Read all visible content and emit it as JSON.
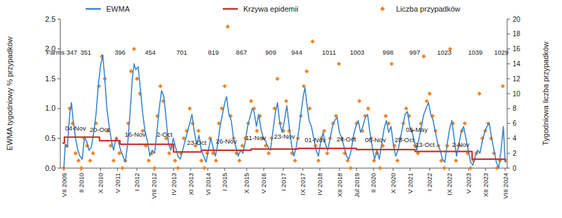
{
  "chart_data": {
    "type": "line",
    "y_label": "EWMA tygodniowy % przypadków",
    "y2_label": "Tygodniowa liczba przypadków",
    "legend": "top",
    "grid": false,
    "xlim": [
      2009.38,
      2024.65
    ],
    "xticks": [
      {
        "value": 2009.5,
        "label": "VII 2009"
      },
      {
        "value": 2010.083,
        "label": "II 2010"
      },
      {
        "value": 2010.75,
        "label": "X 2010"
      },
      {
        "value": 2011.333,
        "label": "V 2011"
      },
      {
        "value": 2012.0,
        "label": "I 2012"
      },
      {
        "value": 2012.583,
        "label": "VIII 2012"
      },
      {
        "value": 2013.25,
        "label": "IV 2013"
      },
      {
        "value": 2013.833,
        "label": "XI 2013"
      },
      {
        "value": 2014.417,
        "label": "VI 2014"
      },
      {
        "value": 2015.0,
        "label": "I 2015"
      },
      {
        "value": 2015.75,
        "label": "X 2015"
      },
      {
        "value": 2016.333,
        "label": "V 2016"
      },
      {
        "value": 2017.0,
        "label": "I 2017"
      },
      {
        "value": 2017.667,
        "label": "IX 2017"
      },
      {
        "value": 2018.25,
        "label": "IV 2018"
      },
      {
        "value": 2018.917,
        "label": "XII 2018"
      },
      {
        "value": 2019.5,
        "label": "Jul 2019"
      },
      {
        "value": 2020.083,
        "label": "II 2020"
      },
      {
        "value": 2020.75,
        "label": "X 2020"
      },
      {
        "value": 2021.333,
        "label": "V 2021"
      },
      {
        "value": 2022.0,
        "label": "I 2022"
      },
      {
        "value": 2022.667,
        "label": "IX 2022"
      },
      {
        "value": 2023.333,
        "label": "V 2023"
      },
      {
        "value": 2023.917,
        "label": "XII 2023"
      },
      {
        "value": 2024.583,
        "label": "VIII 2024"
      }
    ],
    "ylim": [
      0,
      2.5
    ],
    "yticks": [
      {
        "value": 0,
        "label": "0.0"
      },
      0.5,
      {
        "value": 1,
        "label": "1.0"
      },
      1.5,
      {
        "value": 2,
        "label": "2.0"
      },
      2.5
    ],
    "y2lim": [
      0,
      20
    ],
    "y2ticks": [
      0,
      2,
      4,
      6,
      8,
      10,
      12,
      14,
      16,
      18,
      20
    ],
    "series": [
      {
        "name": "EWMA",
        "type": "line",
        "color": "#3a86d0",
        "x": [
          2009.5,
          2009.55,
          2009.62,
          2009.7,
          2009.76,
          2009.82,
          2009.9,
          2009.98,
          2010.05,
          2010.13,
          2010.2,
          2010.28,
          2010.36,
          2010.44,
          2010.52,
          2010.6,
          2010.68,
          2010.75,
          2010.83,
          2010.9,
          2010.97,
          2011.05,
          2011.13,
          2011.2,
          2011.28,
          2011.36,
          2011.44,
          2011.52,
          2011.6,
          2011.68,
          2011.76,
          2011.84,
          2011.9,
          2011.96,
          2012.04,
          2012.12,
          2012.2,
          2012.28,
          2012.36,
          2012.44,
          2012.52,
          2012.6,
          2012.68,
          2012.76,
          2012.84,
          2012.92,
          2013.0,
          2013.08,
          2013.16,
          2013.24,
          2013.32,
          2013.4,
          2013.48,
          2013.56,
          2013.64,
          2013.72,
          2013.8,
          2013.88,
          2013.96,
          2014.04,
          2014.12,
          2014.2,
          2014.28,
          2014.36,
          2014.44,
          2014.52,
          2014.6,
          2014.68,
          2014.76,
          2014.84,
          2014.92,
          2015.0,
          2015.06,
          2015.14,
          2015.22,
          2015.3,
          2015.38,
          2015.46,
          2015.54,
          2015.62,
          2015.7,
          2015.78,
          2015.86,
          2015.94,
          2016.0,
          2016.08,
          2016.16,
          2016.24,
          2016.32,
          2016.4,
          2016.48,
          2016.56,
          2016.64,
          2016.72,
          2016.8,
          2016.88,
          2016.96,
          2017.04,
          2017.12,
          2017.2,
          2017.28,
          2017.36,
          2017.44,
          2017.52,
          2017.6,
          2017.68,
          2017.74,
          2017.8,
          2017.88,
          2017.96,
          2018.04,
          2018.12,
          2018.2,
          2018.28,
          2018.36,
          2018.44,
          2018.52,
          2018.6,
          2018.68,
          2018.76,
          2018.84,
          2018.92,
          2019.0,
          2019.08,
          2019.16,
          2019.24,
          2019.32,
          2019.4,
          2019.48,
          2019.56,
          2019.64,
          2019.72,
          2019.8,
          2019.88,
          2019.96,
          2020.04,
          2020.12,
          2020.2,
          2020.28,
          2020.36,
          2020.44,
          2020.52,
          2020.6,
          2020.68,
          2020.76,
          2020.84,
          2020.92,
          2021.0,
          2021.08,
          2021.16,
          2021.24,
          2021.32,
          2021.4,
          2021.48,
          2021.56,
          2021.64,
          2021.72,
          2021.8,
          2021.88,
          2021.96,
          2022.04,
          2022.12,
          2022.2,
          2022.28,
          2022.36,
          2022.44,
          2022.52,
          2022.6,
          2022.68,
          2022.76,
          2022.84,
          2022.92,
          2023.0,
          2023.08,
          2023.16,
          2023.24,
          2023.32,
          2023.4,
          2023.48,
          2023.56,
          2023.64,
          2023.72,
          2023.8,
          2023.88,
          2023.96,
          2024.04,
          2024.12,
          2024.2,
          2024.28,
          2024.36,
          2024.44,
          2024.52,
          2024.58
        ],
        "values": [
          0.0,
          0.4,
          0.35,
          0.9,
          1.1,
          0.8,
          0.5,
          0.3,
          0.2,
          0.15,
          0.5,
          0.45,
          0.3,
          0.35,
          0.6,
          0.9,
          1.4,
          1.7,
          1.9,
          1.5,
          1.0,
          0.7,
          0.45,
          0.3,
          0.5,
          0.45,
          0.3,
          0.2,
          0.1,
          0.4,
          0.9,
          1.5,
          1.75,
          1.65,
          1.7,
          1.3,
          0.9,
          0.6,
          0.45,
          0.2,
          0.3,
          0.25,
          0.6,
          1.0,
          1.3,
          1.2,
          0.8,
          0.4,
          0.3,
          0.5,
          0.35,
          0.2,
          0.15,
          0.3,
          0.45,
          0.6,
          0.75,
          0.9,
          0.6,
          0.4,
          0.55,
          0.3,
          0.2,
          0.1,
          0.3,
          0.5,
          0.35,
          0.2,
          0.4,
          0.7,
          0.9,
          1.1,
          1.2,
          0.9,
          0.8,
          0.5,
          0.35,
          0.2,
          0.3,
          0.25,
          0.45,
          0.7,
          0.85,
          1.0,
          0.95,
          0.7,
          0.9,
          0.65,
          0.5,
          0.45,
          0.35,
          0.3,
          0.6,
          0.9,
          1.1,
          0.75,
          0.6,
          0.8,
          1.05,
          0.7,
          0.4,
          0.2,
          0.35,
          0.6,
          0.9,
          1.2,
          1.35,
          1.1,
          0.8,
          0.7,
          0.5,
          0.3,
          0.2,
          0.45,
          0.6,
          0.4,
          0.3,
          0.5,
          0.7,
          0.8,
          0.85,
          0.6,
          0.5,
          0.35,
          0.2,
          0.15,
          0.3,
          0.55,
          0.7,
          0.8,
          0.6,
          0.7,
          0.85,
          0.9,
          0.6,
          0.35,
          0.15,
          0.3,
          0.15,
          0.4,
          0.65,
          0.8,
          0.6,
          0.7,
          0.4,
          0.2,
          0.3,
          0.5,
          0.7,
          0.9,
          0.95,
          0.7,
          0.6,
          0.45,
          0.3,
          0.5,
          0.7,
          0.9,
          1.0,
          1.1,
          0.9,
          0.8,
          0.6,
          0.4,
          0.3,
          0.15,
          0.1,
          0.4,
          0.65,
          0.8,
          0.5,
          0.2,
          0.4,
          0.6,
          0.7,
          0.5,
          0.3,
          0.1,
          0.05,
          0.2,
          0.3,
          0.25,
          0.45,
          0.6,
          0.7,
          0.75,
          0.5,
          0.3,
          0.1,
          0.0,
          0.3,
          0.7,
          0.1
        ]
      },
      {
        "name": "Krzywa epidemii",
        "type": "line",
        "line_style": "step",
        "color": "#c8342c",
        "x": [
          2009.45,
          2009.52,
          2010.72,
          2011.42,
          2013.25,
          2014.2,
          2015.9,
          2017.5,
          2019.5,
          2021.5,
          2023.45,
          2024.6
        ],
        "values": [
          0.42,
          0.52,
          0.46,
          0.4,
          0.27,
          0.3,
          0.32,
          0.33,
          0.31,
          0.28,
          0.15,
          0.15
        ]
      },
      {
        "name": "Liczba przypadków",
        "type": "scatter",
        "marker": "diamond",
        "color": "#f0862a",
        "axis": "y2",
        "x": [
          2009.5,
          2009.6,
          2009.7,
          2009.8,
          2009.9,
          2010.0,
          2010.1,
          2010.2,
          2010.3,
          2010.4,
          2010.5,
          2010.6,
          2010.7,
          2010.8,
          2010.9,
          2011.0,
          2011.1,
          2011.2,
          2011.3,
          2011.4,
          2011.5,
          2011.6,
          2011.7,
          2011.8,
          2011.9,
          2012.0,
          2012.1,
          2012.2,
          2012.3,
          2012.4,
          2012.5,
          2012.6,
          2012.7,
          2012.8,
          2012.9,
          2013.0,
          2013.1,
          2013.2,
          2013.3,
          2013.4,
          2013.5,
          2013.6,
          2013.7,
          2013.8,
          2013.9,
          2014.0,
          2014.1,
          2014.2,
          2014.3,
          2014.4,
          2014.5,
          2014.6,
          2014.7,
          2014.8,
          2014.9,
          2015.0,
          2015.1,
          2015.2,
          2015.3,
          2015.4,
          2015.5,
          2015.6,
          2015.7,
          2015.8,
          2015.9,
          2016.0,
          2016.1,
          2016.2,
          2016.3,
          2016.4,
          2016.5,
          2016.6,
          2016.7,
          2016.8,
          2016.9,
          2017.0,
          2017.1,
          2017.2,
          2017.3,
          2017.4,
          2017.5,
          2017.6,
          2017.7,
          2017.8,
          2017.9,
          2018.0,
          2018.1,
          2018.2,
          2018.3,
          2018.4,
          2018.5,
          2018.6,
          2018.7,
          2018.8,
          2018.9,
          2019.0,
          2019.1,
          2019.2,
          2019.3,
          2019.4,
          2019.5,
          2019.6,
          2019.7,
          2019.8,
          2019.9,
          2020.0,
          2020.1,
          2020.2,
          2020.3,
          2020.4,
          2020.5,
          2020.6,
          2020.7,
          2020.8,
          2020.9,
          2021.0,
          2021.1,
          2021.2,
          2021.3,
          2021.4,
          2021.5,
          2021.6,
          2021.7,
          2021.8,
          2021.9,
          2022.0,
          2022.1,
          2022.2,
          2022.3,
          2022.4,
          2022.5,
          2022.6,
          2022.7,
          2022.8,
          2022.9,
          2023.0,
          2023.1,
          2023.2,
          2023.3,
          2023.4,
          2023.5,
          2023.6,
          2023.7,
          2023.8,
          2023.9,
          2024.0,
          2024.1,
          2024.2,
          2024.3,
          2024.4,
          2024.5,
          2024.6
        ],
        "values": [
          0,
          3,
          8,
          6,
          2,
          1,
          0,
          4,
          3,
          1,
          2,
          6,
          11,
          15,
          12,
          5,
          3,
          1,
          4,
          2,
          0,
          1,
          6,
          13,
          16,
          12,
          10,
          5,
          3,
          1,
          2,
          0,
          7,
          11,
          9,
          4,
          2,
          3,
          1,
          0,
          2,
          4,
          5,
          8,
          6,
          3,
          5,
          1,
          0,
          2,
          4,
          2,
          1,
          6,
          8,
          11,
          19,
          7,
          4,
          2,
          1,
          3,
          4,
          6,
          9,
          8,
          5,
          7,
          4,
          3,
          2,
          4,
          8,
          12,
          6,
          5,
          9,
          5,
          2,
          1,
          4,
          7,
          11,
          13,
          8,
          17,
          3,
          1,
          4,
          5,
          2,
          4,
          6,
          7,
          14,
          4,
          2,
          1,
          0,
          4,
          6,
          9,
          5,
          7,
          8,
          4,
          1,
          2,
          0,
          3,
          7,
          6,
          14,
          3,
          1,
          4,
          6,
          8,
          7,
          5,
          3,
          2,
          6,
          15,
          9,
          10,
          7,
          5,
          3,
          1,
          0,
          3,
          16,
          6,
          1,
          3,
          5,
          6,
          2,
          0,
          1,
          2,
          10,
          4,
          5,
          6,
          4,
          2,
          0,
          1,
          11,
          1
        ]
      }
    ],
    "annotations": [
      {
        "text": "Farms 347",
        "x": 2009.43,
        "y": 1.93
      },
      {
        "text": "351",
        "x": 2010.25,
        "y": 1.93
      },
      {
        "text": "396",
        "x": 2011.42,
        "y": 1.93
      },
      {
        "text": "454",
        "x": 2012.45,
        "y": 1.93
      },
      {
        "text": "701",
        "x": 2013.53,
        "y": 1.93
      },
      {
        "text": "819",
        "x": 2014.61,
        "y": 1.93
      },
      {
        "text": "867",
        "x": 2015.57,
        "y": 1.93
      },
      {
        "text": "909",
        "x": 2016.57,
        "y": 1.93
      },
      {
        "text": "944",
        "x": 2017.46,
        "y": 1.93
      },
      {
        "text": "1011",
        "x": 2018.56,
        "y": 1.93
      },
      {
        "text": "1003",
        "x": 2019.52,
        "y": 1.93
      },
      {
        "text": "998",
        "x": 2020.58,
        "y": 1.93
      },
      {
        "text": "997",
        "x": 2021.49,
        "y": 1.93
      },
      {
        "text": "1023",
        "x": 2022.5,
        "y": 1.93
      },
      {
        "text": "1039",
        "x": 2023.56,
        "y": 1.93
      },
      {
        "text": "1029",
        "x": 2024.45,
        "y": 1.93
      },
      {
        "text": "04-Nov",
        "x": 2009.9,
        "y": 0.66
      },
      {
        "text": "20-Oct",
        "x": 2010.72,
        "y": 0.64
      },
      {
        "text": "16-Nov",
        "x": 2011.94,
        "y": 0.56
      },
      {
        "text": "2-Oct",
        "x": 2012.94,
        "y": 0.56
      },
      {
        "text": "23-Oct",
        "x": 2014.04,
        "y": 0.42
      },
      {
        "text": "26-Nov",
        "x": 2015.05,
        "y": 0.44
      },
      {
        "text": "11-Nov",
        "x": 2016.06,
        "y": 0.5
      },
      {
        "text": "23-Nov",
        "x": 2017.04,
        "y": 0.52
      },
      {
        "text": "01-Nov",
        "x": 2018.09,
        "y": 0.47
      },
      {
        "text": "24-Oct",
        "x": 2019.15,
        "y": 0.48
      },
      {
        "text": "06-Nov",
        "x": 2020.15,
        "y": 0.46
      },
      {
        "text": "28-Oct",
        "x": 2021.14,
        "y": 0.46
      },
      {
        "text": "05-May",
        "x": 2021.56,
        "y": 0.64
      },
      {
        "text": "13-Oct",
        "x": 2021.84,
        "y": 0.38
      },
      {
        "text": "2-Nov",
        "x": 2023.06,
        "y": 0.38
      }
    ]
  }
}
